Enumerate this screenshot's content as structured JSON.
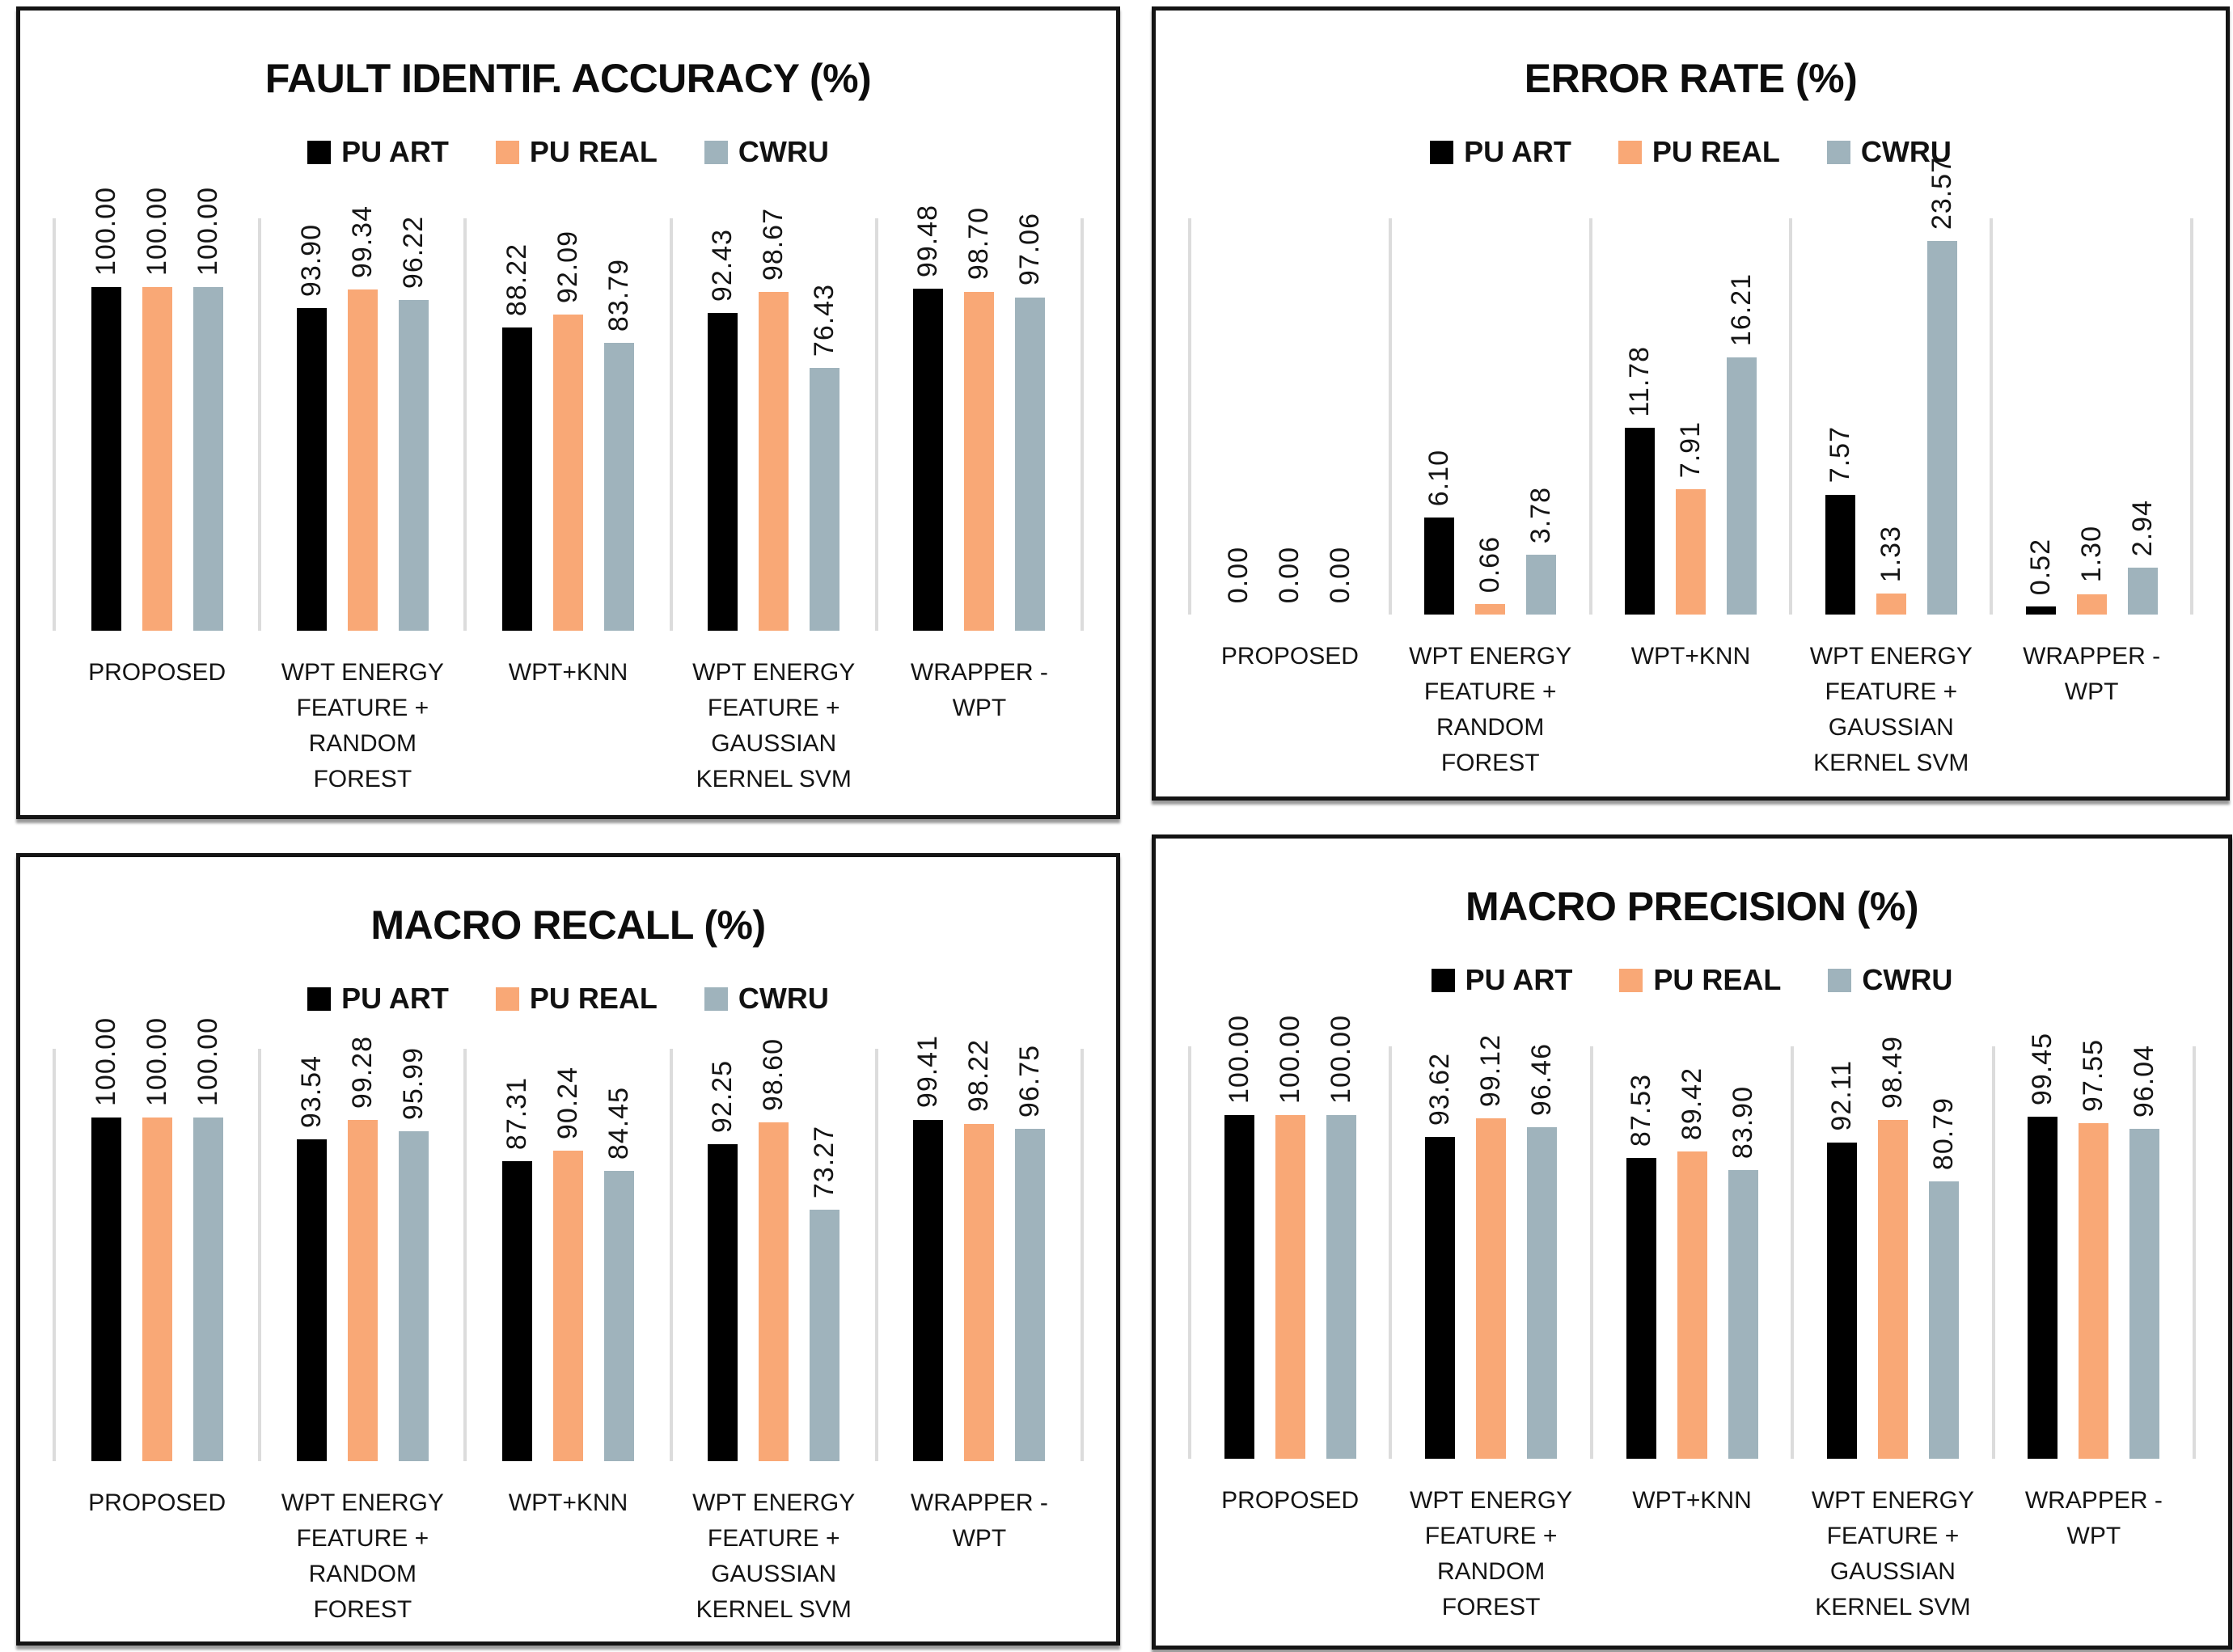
{
  "colors": {
    "pu_art": "#000000",
    "pu_real": "#F9A876",
    "cwru": "#9FB3BC",
    "gridline": "#dcdcdc",
    "panel_border": "#141414",
    "text": "#141414",
    "background": "#ffffff"
  },
  "chart_data": [
    {
      "type": "bar",
      "title": "FAULT IDENTIF. ACCURACY (%)",
      "categories": [
        [
          "PROPOSED"
        ],
        [
          "WPT ENERGY",
          "FEATURE +",
          "RANDOM",
          "FOREST"
        ],
        [
          "WPT+KNN"
        ],
        [
          "WPT ENERGY",
          "FEATURE +",
          "GAUSSIAN",
          "KERNEL SVM"
        ],
        [
          "WRAPPER -",
          "WPT"
        ]
      ],
      "series": [
        {
          "name": "PU ART",
          "color": "#000000",
          "values": [
            100.0,
            93.9,
            88.22,
            92.43,
            99.48
          ]
        },
        {
          "name": "PU REAL",
          "color": "#F9A876",
          "values": [
            100.0,
            99.34,
            92.09,
            98.67,
            98.7
          ]
        },
        {
          "name": "CWRU",
          "color": "#9FB3BC",
          "values": [
            100.0,
            96.22,
            83.79,
            76.43,
            97.06
          ]
        }
      ],
      "ylim": [
        0,
        120
      ],
      "value_format": "0.00",
      "value_label_rotation": 90,
      "legend_position": "top-center",
      "grid": "vertical-category-separators"
    },
    {
      "type": "bar",
      "title": "ERROR RATE (%)",
      "categories": [
        [
          "PROPOSED"
        ],
        [
          "WPT ENERGY",
          "FEATURE +",
          "RANDOM",
          "FOREST"
        ],
        [
          "WPT+KNN"
        ],
        [
          "WPT ENERGY",
          "FEATURE +",
          "GAUSSIAN",
          "KERNEL SVM"
        ],
        [
          "WRAPPER -",
          "WPT"
        ]
      ],
      "series": [
        {
          "name": "PU ART",
          "color": "#000000",
          "values": [
            0.0,
            6.1,
            11.78,
            7.57,
            0.52
          ]
        },
        {
          "name": "PU REAL",
          "color": "#F9A876",
          "values": [
            0.0,
            0.66,
            7.91,
            1.33,
            1.3
          ]
        },
        {
          "name": "CWRU",
          "color": "#9FB3BC",
          "values": [
            0.0,
            3.78,
            16.21,
            23.57,
            2.94
          ]
        }
      ],
      "ylim": [
        0,
        25
      ],
      "value_format": "0.00",
      "value_label_rotation": 90,
      "legend_position": "top-center",
      "grid": "vertical-category-separators"
    },
    {
      "type": "bar",
      "title": "MACRO RECALL (%)",
      "categories": [
        [
          "PROPOSED"
        ],
        [
          "WPT ENERGY",
          "FEATURE +",
          "RANDOM",
          "FOREST"
        ],
        [
          "WPT+KNN"
        ],
        [
          "WPT ENERGY",
          "FEATURE +",
          "GAUSSIAN",
          "KERNEL SVM"
        ],
        [
          "WRAPPER -",
          "WPT"
        ]
      ],
      "series": [
        {
          "name": "PU ART",
          "color": "#000000",
          "values": [
            100.0,
            93.54,
            87.31,
            92.25,
            99.41
          ]
        },
        {
          "name": "PU REAL",
          "color": "#F9A876",
          "values": [
            100.0,
            99.28,
            90.24,
            98.6,
            98.22
          ]
        },
        {
          "name": "CWRU",
          "color": "#9FB3BC",
          "values": [
            100.0,
            95.99,
            84.45,
            73.27,
            96.75
          ]
        }
      ],
      "ylim": [
        0,
        120
      ],
      "value_format": "0.00",
      "value_label_rotation": 90,
      "legend_position": "top-center",
      "grid": "vertical-category-separators"
    },
    {
      "type": "bar",
      "title": "MACRO PRECISION (%)",
      "categories": [
        [
          "PROPOSED"
        ],
        [
          "WPT ENERGY",
          "FEATURE +",
          "RANDOM",
          "FOREST"
        ],
        [
          "WPT+KNN"
        ],
        [
          "WPT ENERGY",
          "FEATURE +",
          "GAUSSIAN",
          "KERNEL SVM"
        ],
        [
          "WRAPPER -",
          "WPT"
        ]
      ],
      "series": [
        {
          "name": "PU ART",
          "color": "#000000",
          "values": [
            100.0,
            93.62,
            87.53,
            92.11,
            99.45
          ]
        },
        {
          "name": "PU REAL",
          "color": "#F9A876",
          "values": [
            100.0,
            99.12,
            89.42,
            98.49,
            97.55
          ]
        },
        {
          "name": "CWRU",
          "color": "#9FB3BC",
          "values": [
            100.0,
            96.46,
            83.9,
            80.79,
            96.04
          ]
        }
      ],
      "ylim": [
        0,
        120
      ],
      "value_format": "0.00",
      "value_label_rotation": 90,
      "legend_position": "top-center",
      "grid": "vertical-category-separators"
    }
  ]
}
